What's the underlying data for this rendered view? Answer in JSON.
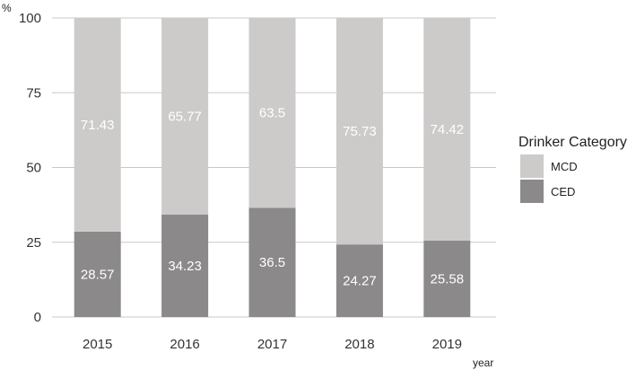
{
  "chart_data": {
    "type": "bar",
    "stacked": true,
    "categories": [
      "2015",
      "2016",
      "2017",
      "2018",
      "2019"
    ],
    "series": [
      {
        "name": "CED",
        "values": [
          28.57,
          34.23,
          36.5,
          24.27,
          25.58
        ],
        "color": "#8b8989"
      },
      {
        "name": "MCD",
        "values": [
          71.43,
          65.77,
          63.5,
          75.73,
          74.42
        ],
        "color": "#cdcaca"
      }
    ],
    "value_labels": {
      "CED": [
        "28.57",
        "34.23",
        "36.5",
        "24.27",
        "25.58"
      ],
      "MCD": [
        "71.43",
        "65.77",
        "63.5",
        "75.73",
        "74.42"
      ]
    },
    "xlabel": "year",
    "ylabel": "%",
    "ylim": [
      0,
      100
    ],
    "yticks": [
      "0",
      "25",
      "50",
      "75",
      "100"
    ],
    "grid": true,
    "gridline_color": "#c8c8c8",
    "legend": {
      "title": "Drinker Category",
      "position": "right",
      "entries": [
        "MCD",
        "CED"
      ]
    }
  }
}
